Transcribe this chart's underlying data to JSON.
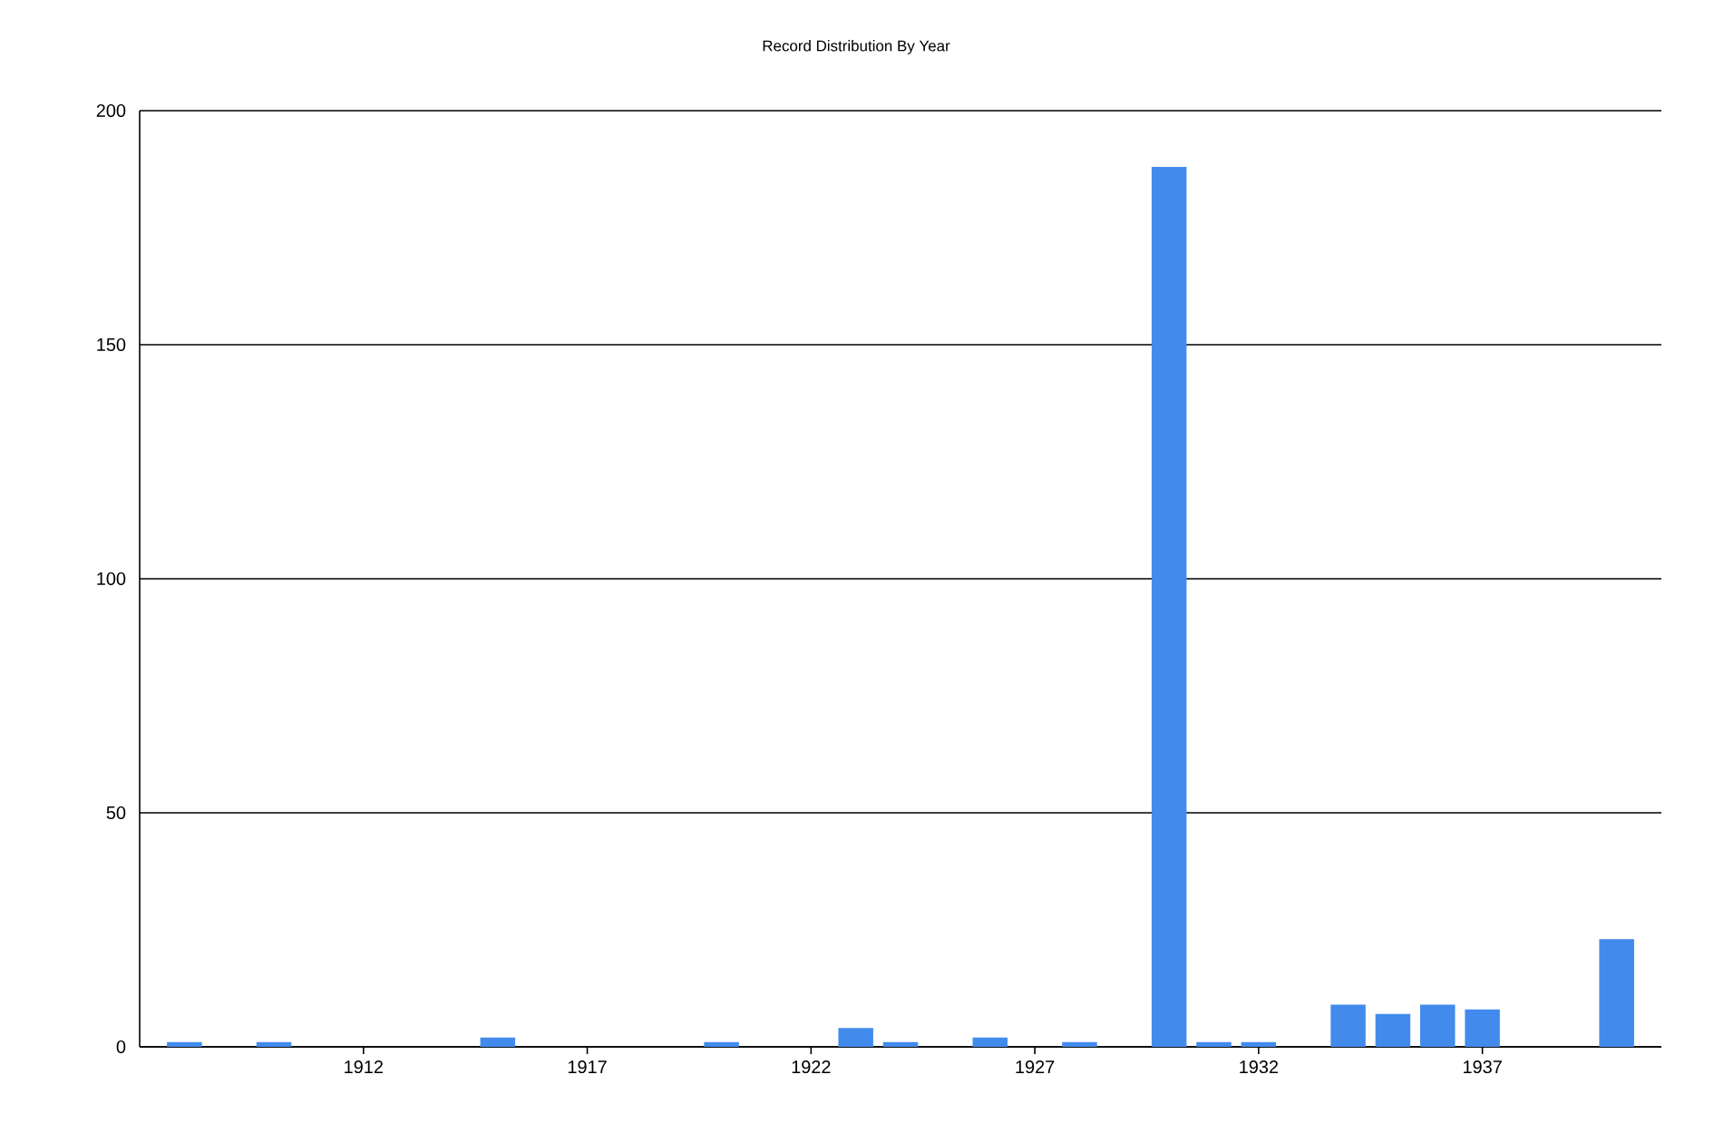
{
  "chart_data": {
    "type": "bar",
    "title": "Record Distribution By Year",
    "x": [
      1908,
      1910,
      1915,
      1920,
      1923,
      1924,
      1926,
      1928,
      1930,
      1931,
      1932,
      1934,
      1935,
      1936,
      1937,
      1940
    ],
    "values": [
      1,
      1,
      2,
      1,
      4,
      1,
      2,
      1,
      188,
      1,
      1,
      9,
      7,
      9,
      8,
      23
    ],
    "color": "#428bed",
    "xlim": [
      1907,
      1941
    ],
    "xticks": [
      1912,
      1917,
      1922,
      1927,
      1932,
      1937
    ],
    "ylim": [
      0,
      200
    ],
    "yticks": [
      0,
      50,
      100,
      150,
      200
    ],
    "grid": "y"
  }
}
